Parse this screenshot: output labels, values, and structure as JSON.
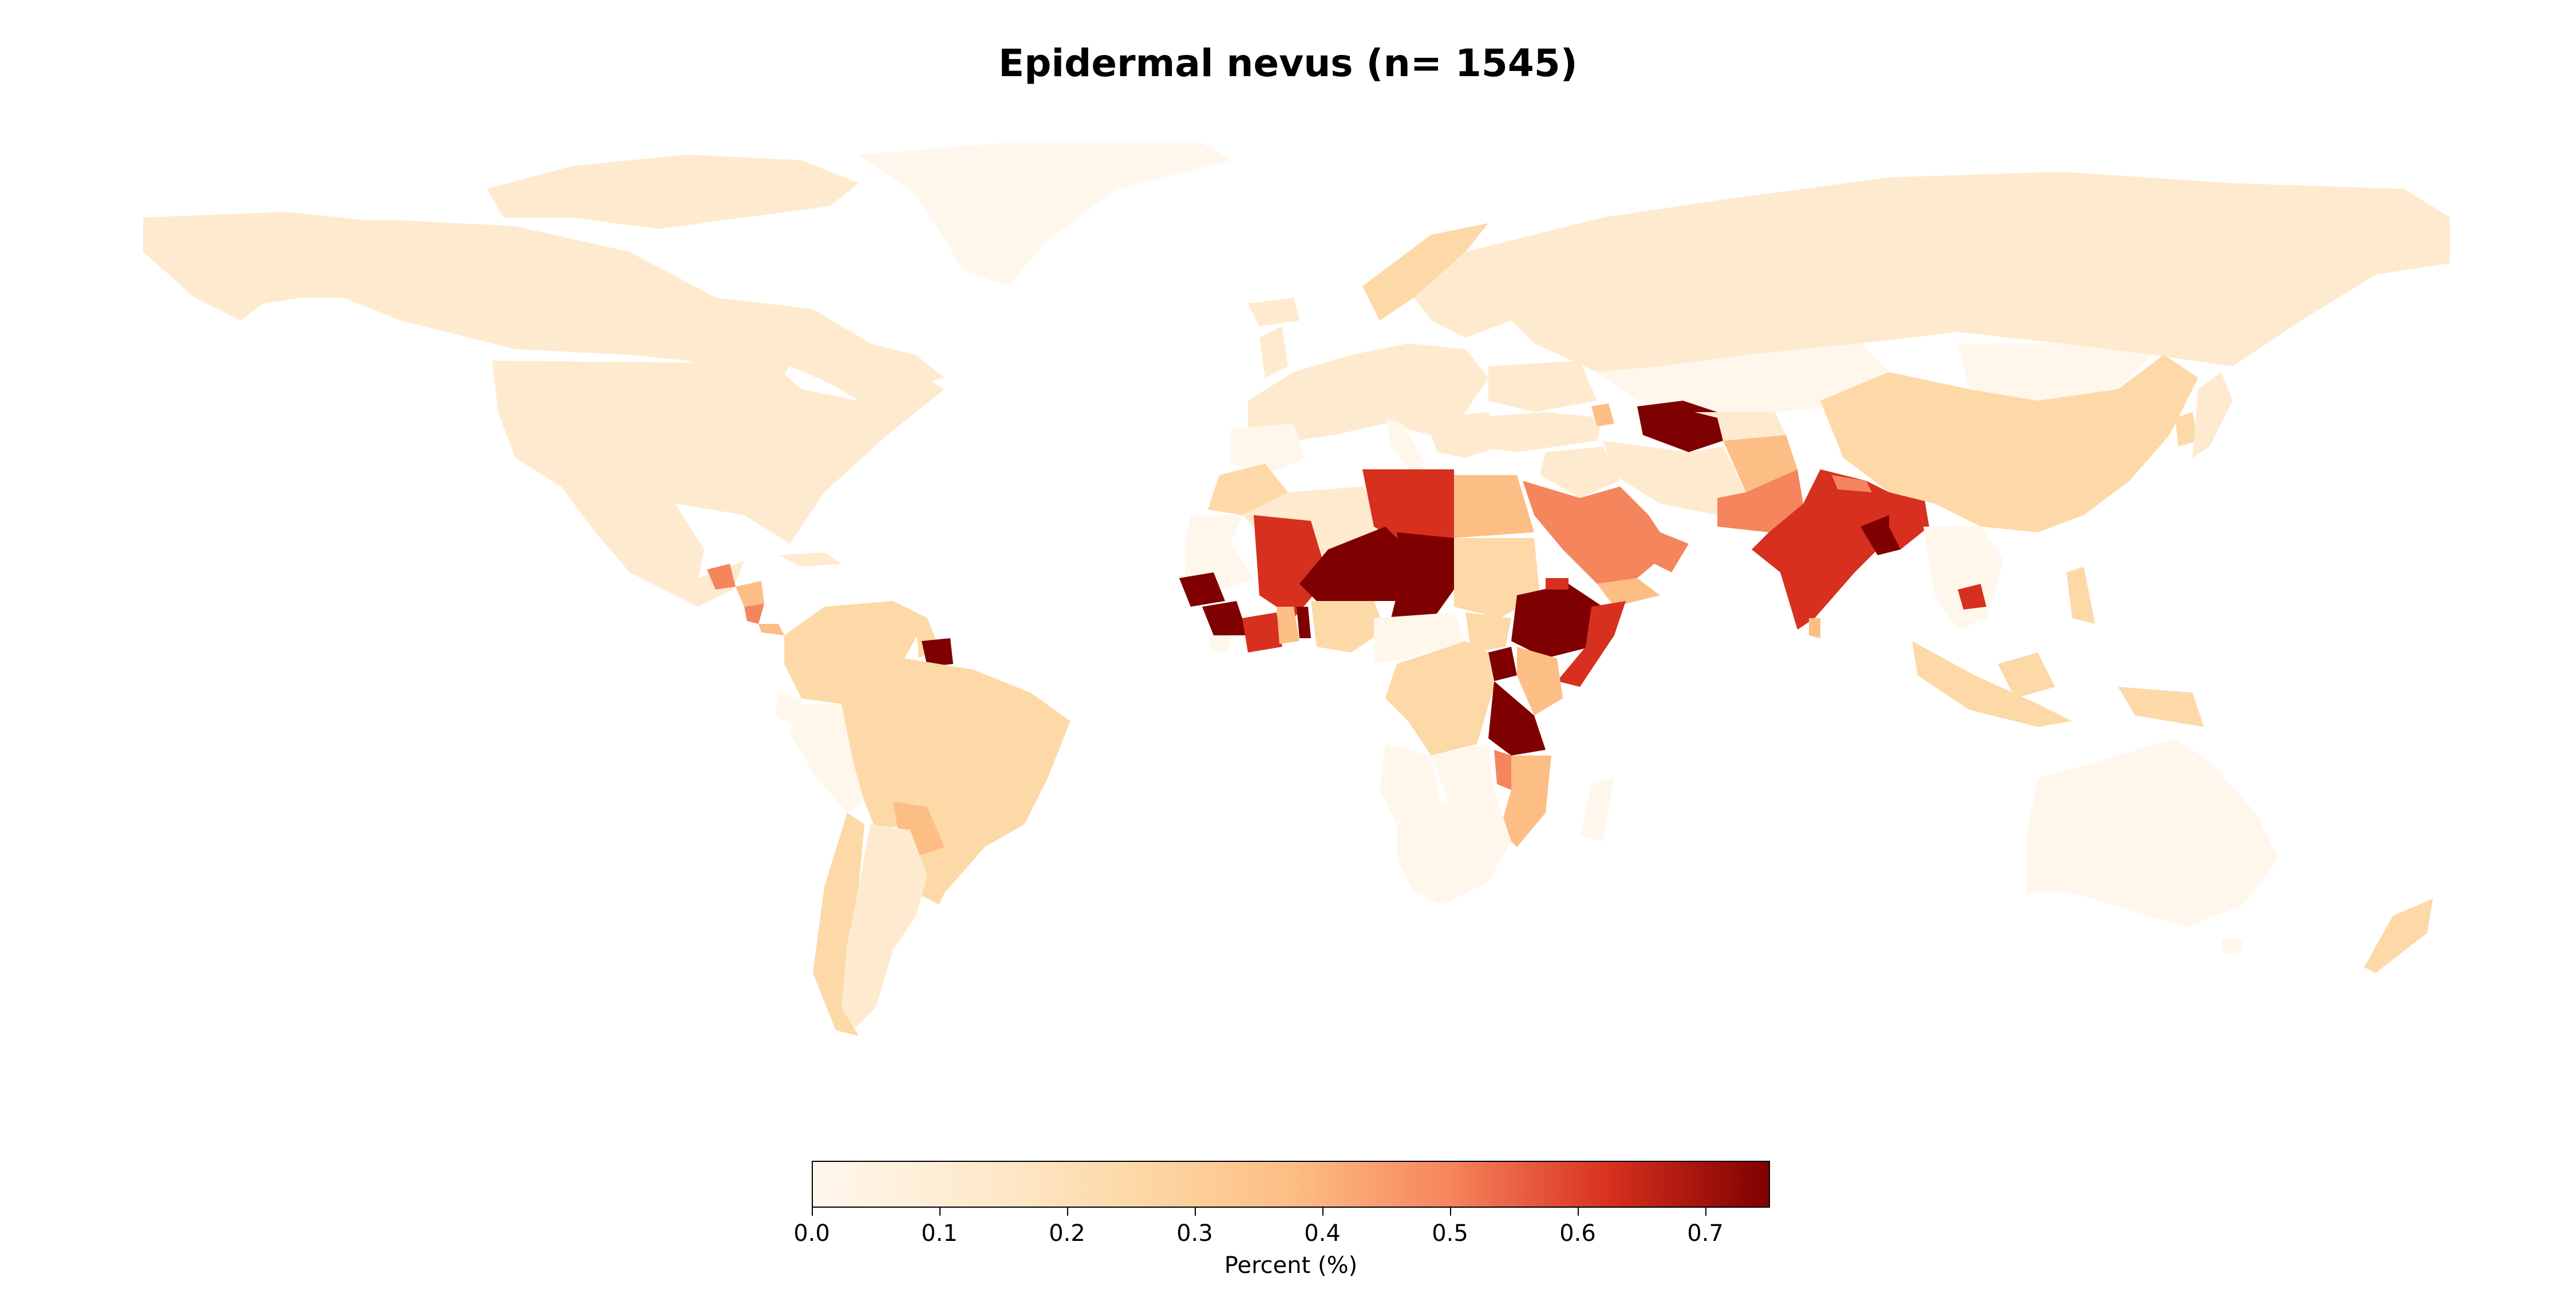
{
  "map": {
    "title": "Epidermal nevus (n= 1545)",
    "projection": "equirectangular",
    "colormap": "OrRd",
    "colorbar": {
      "label": "Percent (%)",
      "min": 0.0,
      "max": 0.75,
      "ticks": [
        "0.0",
        "0.1",
        "0.2",
        "0.3",
        "0.4",
        "0.5",
        "0.6",
        "0.7"
      ]
    },
    "colors": {
      "very_low": "#fff7ec",
      "low": "#feebcf",
      "low_mid": "#fdd9a8",
      "mid": "#fdbe85",
      "mid_high": "#f5855c",
      "high": "#d7301f",
      "very_high": "#7f0000"
    }
  }
}
